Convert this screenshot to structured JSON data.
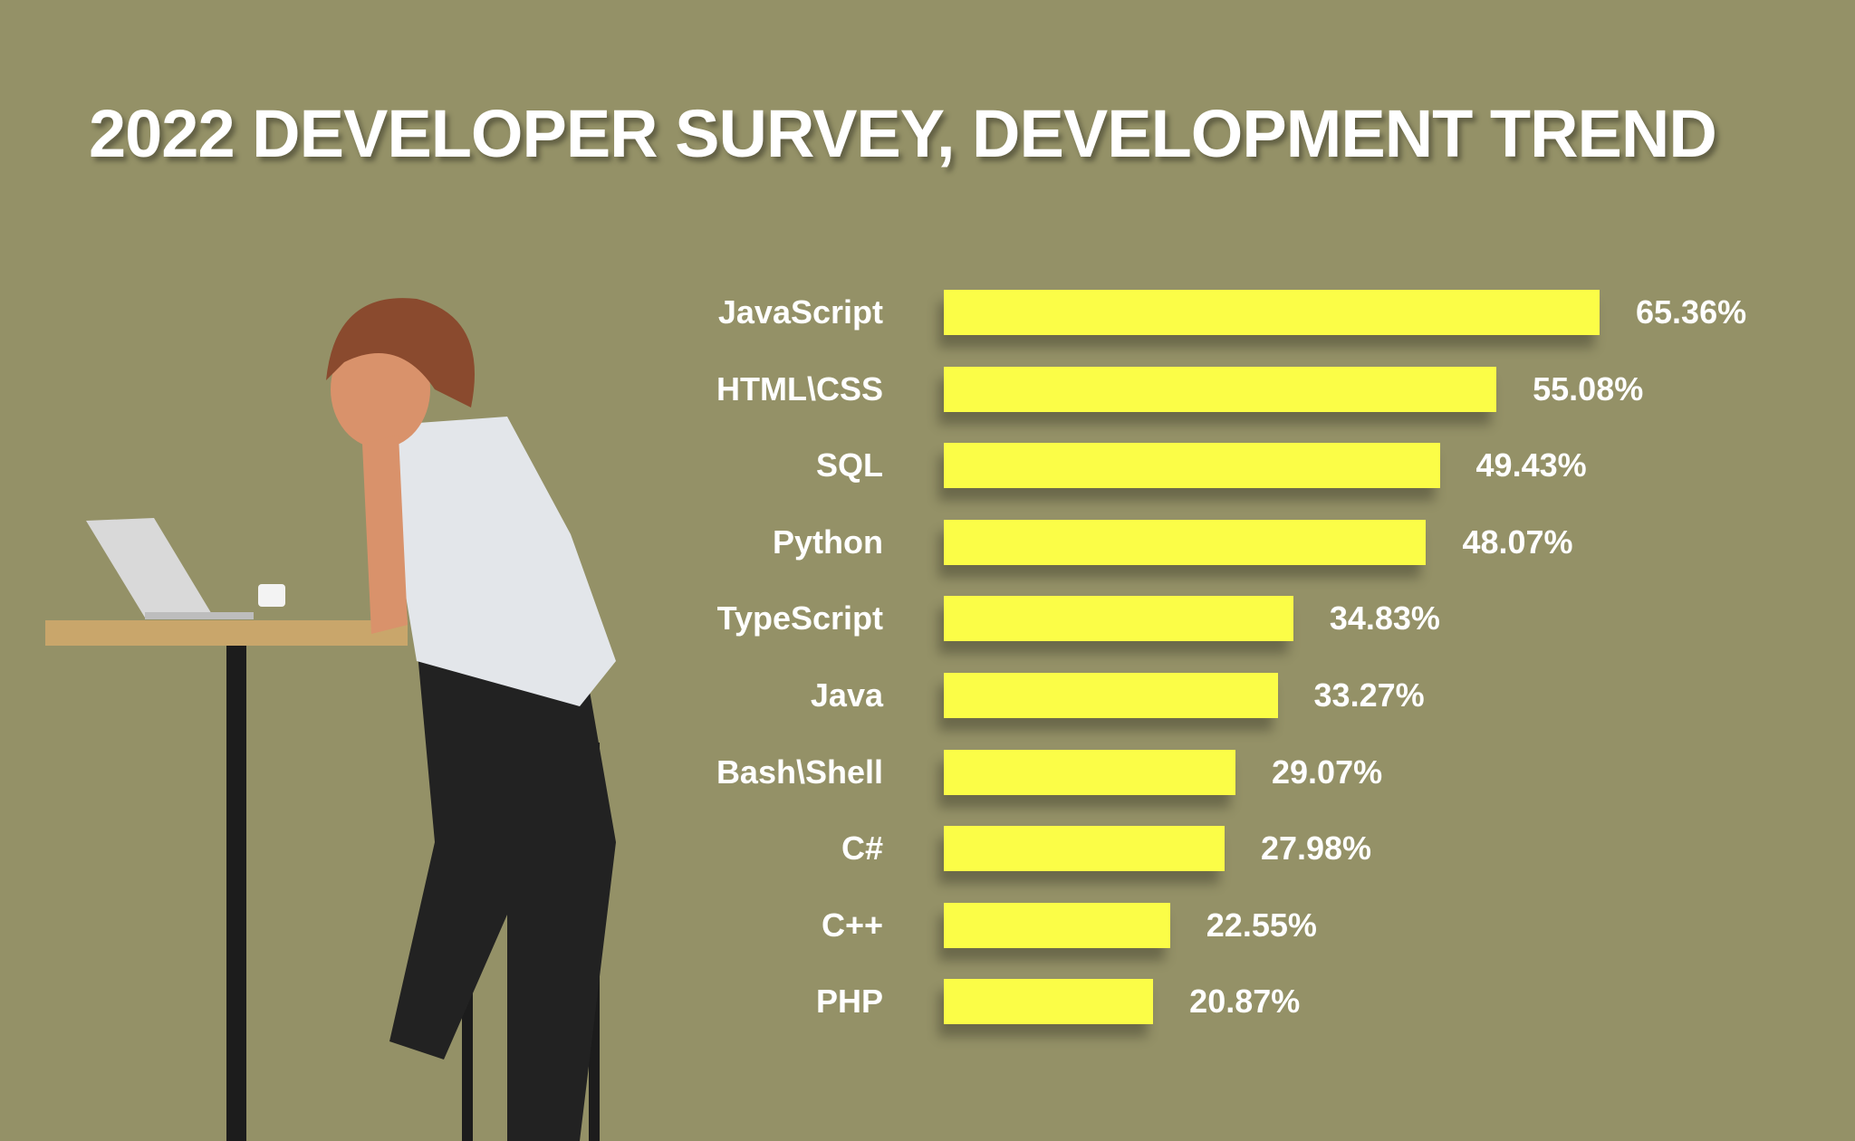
{
  "chart_data": {
    "type": "bar",
    "orientation": "horizontal",
    "title": "2022 DEVELOPER SURVEY,  DEVELOPMENT TREND",
    "categories": [
      "JavaScript",
      "HTML\\CSS",
      "SQL",
      "Python",
      "TypeScript",
      "Java",
      "Bash\\Shell",
      "C#",
      "C++",
      "PHP"
    ],
    "values": [
      65.36,
      55.08,
      49.43,
      48.07,
      34.83,
      33.27,
      29.07,
      27.98,
      22.55,
      20.87
    ],
    "value_labels": [
      "65.36%",
      "55.08%",
      "49.43%",
      "48.07%",
      "34.83%",
      "33.27%",
      "29.07%",
      "27.98%",
      "22.55%",
      "20.87%"
    ],
    "unit": "%",
    "grid": false,
    "colors": {
      "background": "#949167",
      "bar": "#fbfd47",
      "text": "#ffffff"
    }
  },
  "illustration": "woman-leaning-on-desk-with-laptop"
}
